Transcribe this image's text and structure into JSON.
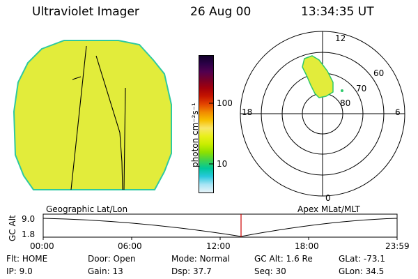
{
  "header": {
    "title": "Ultraviolet Imager",
    "date": "26 Aug 00",
    "time": "13:34:35 UT"
  },
  "colorbar": {
    "label": "photon cm⁻²s⁻¹",
    "tick_labels": [
      "100",
      "10"
    ],
    "colors_top_to_bottom": [
      "#12002a",
      "#2c0047",
      "#52004f",
      "#770029",
      "#a2000c",
      "#c41400",
      "#e34400",
      "#f18a00",
      "#f7bf00",
      "#f8e66a",
      "#e9f01a",
      "#c9ed00",
      "#8de000",
      "#40d24c",
      "#00c89a",
      "#28c8dc",
      "#a7e4f5",
      "#e8f4f8"
    ]
  },
  "imager_disk": {
    "fill": "#e2ec3b",
    "edge": "#2ec9a0"
  },
  "polar_plot": {
    "clock_labels": [
      "12",
      "18",
      "6",
      "0"
    ],
    "latitude_labels": [
      "60",
      "70",
      "80"
    ],
    "blob_color": "#e2ec3b",
    "blob_edge": "#2ec96a"
  },
  "titles": {
    "left": "Geographic Lat/Lon",
    "right": "Apex MLat/MLT"
  },
  "altitude_panel": {
    "ylabel": "GC Alt",
    "y_ticks": [
      "9.0",
      "1.8"
    ],
    "x_ticks": [
      "00:00",
      "06:00",
      "12:00",
      "18:00",
      "23:59"
    ],
    "marker_color": "#cc0000"
  },
  "status": {
    "col1": [
      {
        "label": "Flt:",
        "value": "HOME"
      },
      {
        "label": "IP:",
        "value": "9.0"
      }
    ],
    "col2": [
      {
        "label": "Door:",
        "value": "Open"
      },
      {
        "label": "Gain:",
        "value": "13"
      }
    ],
    "col3": [
      {
        "label": "Mode:",
        "value": "Normal"
      },
      {
        "label": "Dsp:",
        "value": "37.7"
      }
    ],
    "col4": [
      {
        "label": "GC Alt:",
        "value": "1.6 Re"
      },
      {
        "label": "Seq:",
        "value": "30"
      }
    ],
    "col5": [
      {
        "label": "GLat:",
        "value": "-73.1"
      },
      {
        "label": "GLon:",
        "value": "34.5"
      }
    ]
  }
}
